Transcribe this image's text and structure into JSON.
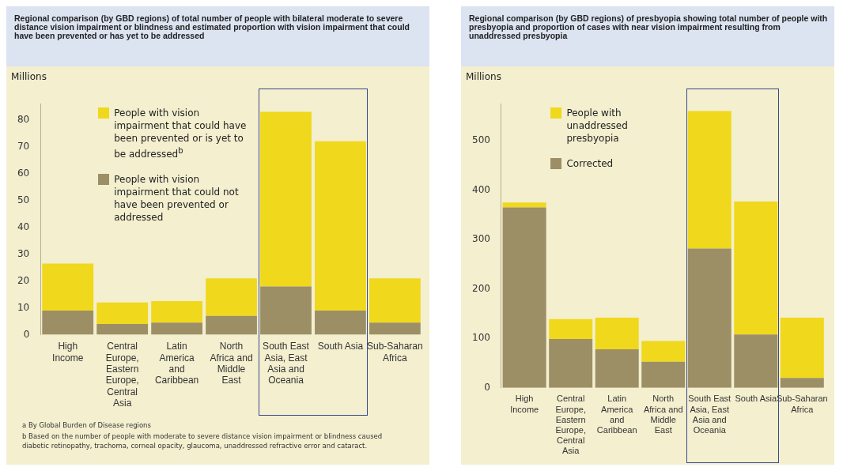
{
  "chart_data": [
    {
      "type": "bar",
      "title": "Regional comparison (by GBD regions) of total number of people with bilateral moderate to severe distance vision impairment or blindness and estimated proportion with vision impairment that could have been prevented or has yet to be addressed",
      "ylabel": "Millions",
      "categories": [
        "High Income",
        "Central Europe, Eastern Europe, Central Asia",
        "Latin America and Caribbean",
        "North Africa and Middle East",
        "South East Asia, East Asia and Oceania",
        "South Asia",
        "Sub-Saharan Africa"
      ],
      "stacked": true,
      "series": [
        {
          "name": "People with vision impairment that could not have been prevented or addressed",
          "color": "#9c8f66",
          "values": [
            9,
            4,
            4.5,
            7,
            18,
            9,
            4.5
          ]
        },
        {
          "name": "People with vision impairment that could have been prevented or is yet to be addressed$^{b}$",
          "color": "#f0d81c",
          "values": [
            17.5,
            8,
            8,
            14,
            65,
            63,
            16.5
          ]
        }
      ],
      "yticks": [
        0,
        10,
        20,
        30,
        40,
        50,
        60,
        70,
        80
      ],
      "grid": false,
      "legend": "top left",
      "ylim": [
        0,
        86
      ],
      "annotations": [
        "a   By Global Burden of Disease regions",
        "b   Based on the number of people with moderate to severe distance vision impairment or blindness caused diabetic retinopathy, trachoma, corneal opacity, glaucoma, unaddressed refractive error and cataract."
      ]
    },
    {
      "type": "bar",
      "title": "Regional comparison (by GBD regions) of presbyopia showing total number of people with presbyopia and proportion of cases with near vision impairment resulting from unaddressed presbyopia",
      "ylabel": "Millions",
      "categories": [
        "High Income",
        "Central Europe, Eastern Europe, Central Asia",
        "Latin America and Caribbean",
        "North Africa and Middle East",
        "South East Asia, East Asia and Oceania",
        "South Asia",
        "Sub-Saharan Africa"
      ],
      "stacked": true,
      "series": [
        {
          "name": "Corrected",
          "color": "#9c8f66",
          "values": [
            365,
            99,
            78,
            53,
            282,
            108,
            20
          ]
        },
        {
          "name": "People with unaddressed presbyopia",
          "color": "#f0d81c",
          "values": [
            10,
            40,
            64,
            42,
            278,
            269,
            122
          ]
        }
      ],
      "yticks": [
        0,
        100,
        200,
        300,
        400,
        500
      ],
      "grid": false,
      "legend": "top left",
      "ylim": [
        0,
        575
      ]
    }
  ]
}
